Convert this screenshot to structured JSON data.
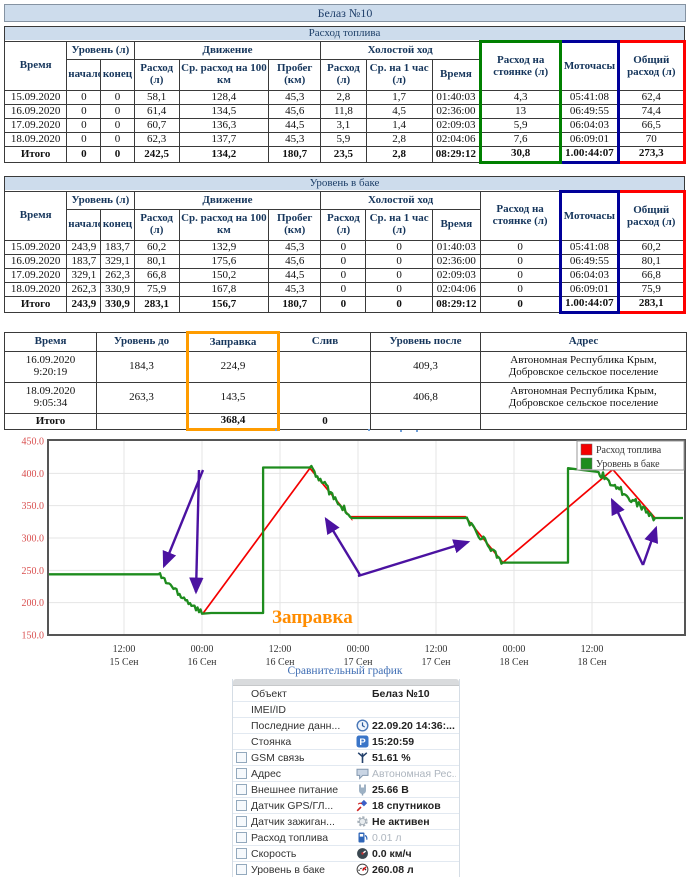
{
  "title": "Белаз №10",
  "comparative_link": "Сравнительный график",
  "headers": {
    "time": "Время",
    "level_group": "Уровень (л)",
    "level_start": "начало",
    "level_end": "конец",
    "movement_group": "Движение",
    "consumption": "Расход (л)",
    "avg_per_100": "Ср. расход на 100 км",
    "mileage": "Пробег (км)",
    "idle_group": "Холостой ход",
    "idle_consumption": "Расход (л)",
    "idle_per_hour": "Ср. на 1 час (л)",
    "idle_time": "Время",
    "parking": "Расход на стоянке (л)",
    "engine_hours": "Моточасы",
    "total": "Общий расход (л)"
  },
  "fuel_table": {
    "section_title": "Расход топлива",
    "rows": [
      [
        "15.09.2020",
        "0",
        "0",
        "58,1",
        "128,4",
        "45,3",
        "2,8",
        "1,7",
        "01:40:03",
        "4,3",
        "05:41:08",
        "62,4"
      ],
      [
        "16.09.2020",
        "0",
        "0",
        "61,4",
        "134,5",
        "45,6",
        "11,8",
        "4,5",
        "02:36:00",
        "13",
        "06:49:55",
        "74,4"
      ],
      [
        "17.09.2020",
        "0",
        "0",
        "60,7",
        "136,3",
        "44,5",
        "3,1",
        "1,4",
        "02:09:03",
        "5,9",
        "06:04:03",
        "66,5"
      ],
      [
        "18.09.2020",
        "0",
        "0",
        "62,3",
        "137,7",
        "45,3",
        "5,9",
        "2,8",
        "02:04:06",
        "7,6",
        "06:09:01",
        "70"
      ]
    ],
    "total": [
      "Итого",
      "0",
      "0",
      "242,5",
      "134,2",
      "180,7",
      "23,5",
      "2,8",
      "08:29:12",
      "30,8",
      "1.00:44:07",
      "273,3"
    ]
  },
  "tank_table": {
    "section_title": "Уровень в баке",
    "rows": [
      [
        "15.09.2020",
        "243,9",
        "183,7",
        "60,2",
        "132,9",
        "45,3",
        "0",
        "0",
        "01:40:03",
        "0",
        "05:41:08",
        "60,2"
      ],
      [
        "16.09.2020",
        "183,7",
        "329,1",
        "80,1",
        "175,6",
        "45,6",
        "0",
        "0",
        "02:36:00",
        "0",
        "06:49:55",
        "80,1"
      ],
      [
        "17.09.2020",
        "329,1",
        "262,3",
        "66,8",
        "150,2",
        "44,5",
        "0",
        "0",
        "02:09:03",
        "0",
        "06:04:03",
        "66,8"
      ],
      [
        "18.09.2020",
        "262,3",
        "330,9",
        "75,9",
        "167,8",
        "45,3",
        "0",
        "0",
        "02:04:06",
        "0",
        "06:09:01",
        "75,9"
      ]
    ],
    "total": [
      "Итого",
      "243,9",
      "330,9",
      "283,1",
      "156,7",
      "180,7",
      "0",
      "0",
      "08:29:12",
      "0",
      "1.00:44:07",
      "283,1"
    ]
  },
  "refuel_table": {
    "headers": [
      "Время",
      "Уровень до",
      "Заправка",
      "Слив",
      "Уровень после",
      "Адрес"
    ],
    "rows": [
      [
        "16.09.2020\n9:20:19",
        "184,3",
        "224,9",
        "",
        "409,3",
        "Автономная Республика Крым, Добровское сельское поселение"
      ],
      [
        "18.09.2020\n9:05:34",
        "263,3",
        "143,5",
        "",
        "406,8",
        "Автономная Республика Крым, Добровское сельское поселение"
      ]
    ],
    "total": [
      "Итого",
      "",
      "368,4",
      "0",
      "",
      ""
    ]
  },
  "chart_data": {
    "type": "line",
    "ylabel": "",
    "xlabel": "",
    "ylim": [
      150,
      450
    ],
    "yticks": [
      450,
      400,
      350,
      300,
      250,
      200,
      150
    ],
    "x_unit": "hours since 15 Сен 00:00",
    "xticks": [
      {
        "t": 12,
        "time": "12:00",
        "date": "15 Сен"
      },
      {
        "t": 24,
        "time": "00:00",
        "date": "16 Сен"
      },
      {
        "t": 36,
        "time": "12:00",
        "date": "16 Сен"
      },
      {
        "t": 48,
        "time": "00:00",
        "date": "17 Сен"
      },
      {
        "t": 60,
        "time": "12:00",
        "date": "17 Сен"
      },
      {
        "t": 72,
        "time": "00:00",
        "date": "18 Сен"
      },
      {
        "t": 84,
        "time": "12:00",
        "date": "18 Сен"
      }
    ],
    "legend_position": "top-right",
    "series": [
      {
        "name": "Расход топлива",
        "color": "#f40000",
        "points": [
          [
            24.2,
            184
          ],
          [
            40.6,
            408
          ],
          [
            47,
            330
          ],
          [
            47,
            333
          ],
          [
            64.5,
            333
          ],
          [
            70.3,
            262
          ],
          [
            87.2,
            406
          ],
          [
            93.7,
            331
          ],
          [
            98,
            331
          ]
        ],
        "noisy_segments": []
      },
      {
        "name": "Уровень в баке",
        "color": "#1e8c1e",
        "points": [
          [
            0.3,
            243.9
          ],
          [
            17.3,
            243.9
          ],
          [
            24,
            183
          ],
          [
            25.4,
            184
          ],
          [
            33.4,
            184
          ],
          [
            33.4,
            409
          ],
          [
            40.6,
            409
          ],
          [
            47,
            331
          ],
          [
            64.5,
            331
          ],
          [
            70.3,
            262
          ],
          [
            80.3,
            262
          ],
          [
            80.3,
            408
          ],
          [
            85,
            402
          ],
          [
            93.7,
            331
          ],
          [
            98,
            331
          ]
        ],
        "noisy_segments": [
          [
            1,
            2
          ],
          [
            6,
            7
          ],
          [
            8,
            9
          ],
          [
            12,
            13
          ]
        ]
      }
    ],
    "annotations": {
      "label": {
        "text": "Заправка",
        "color": "#ff8c00",
        "x": 272,
        "y": 623
      },
      "arrows": [
        [
          203,
          470,
          164,
          566
        ],
        [
          199,
          470,
          196,
          592
        ],
        [
          360,
          575,
          326,
          519
        ],
        [
          358,
          576,
          468,
          542
        ],
        [
          643,
          565,
          612,
          500
        ],
        [
          643,
          565,
          656,
          528
        ]
      ]
    }
  },
  "info_panel": {
    "rows": [
      {
        "label": "Объект",
        "value": "Белаз №10",
        "checkbox": false,
        "icon": null,
        "muted": false
      },
      {
        "label": "IMEI/ID",
        "value": "",
        "checkbox": false,
        "icon": null,
        "muted": false
      },
      {
        "label": "Последние данн...",
        "value": "22.09.20 14:36:...",
        "checkbox": false,
        "icon": "clock-icon",
        "muted": false
      },
      {
        "label": "Стоянка",
        "value": "15:20:59",
        "checkbox": false,
        "icon": "parking-icon",
        "muted": false
      },
      {
        "label": "GSM связь",
        "value": "51.61 %",
        "checkbox": true,
        "icon": "gsm-signal-icon",
        "muted": false
      },
      {
        "label": "Адрес",
        "value": "Автономная Рес...",
        "checkbox": true,
        "icon": "address-icon",
        "muted": true
      },
      {
        "label": "Внешнее питание",
        "value": "25.66 В",
        "checkbox": true,
        "icon": "power-icon",
        "muted": false
      },
      {
        "label": "Датчик GPS/ГЛ...",
        "value": "18 спутников",
        "checkbox": true,
        "icon": "gps-icon",
        "muted": false
      },
      {
        "label": "Датчик зажиган...",
        "value": "Не активен",
        "checkbox": true,
        "icon": "ignition-icon",
        "muted": false
      },
      {
        "label": "Расход топлива",
        "value": "0.01 л",
        "checkbox": true,
        "icon": "fuel-icon",
        "muted": true
      },
      {
        "label": "Скорость",
        "value": "0.0 км/ч",
        "checkbox": true,
        "icon": "speed-icon",
        "muted": false
      },
      {
        "label": "Уровень в баке",
        "value": "260.08 л",
        "checkbox": true,
        "icon": "tank-icon",
        "muted": false
      }
    ]
  },
  "colors": {
    "highlight_green": "#008000",
    "highlight_blue": "#000099",
    "highlight_red": "#fe0000",
    "highlight_orange": "#ff9c00",
    "series_red": "#f40000",
    "series_green": "#1e8c1e",
    "arrow_purple": "#4b12a1",
    "axis_label_red": "#d94f4f",
    "link_blue": "#3f6eb4",
    "header_bg": "#cddcec"
  }
}
